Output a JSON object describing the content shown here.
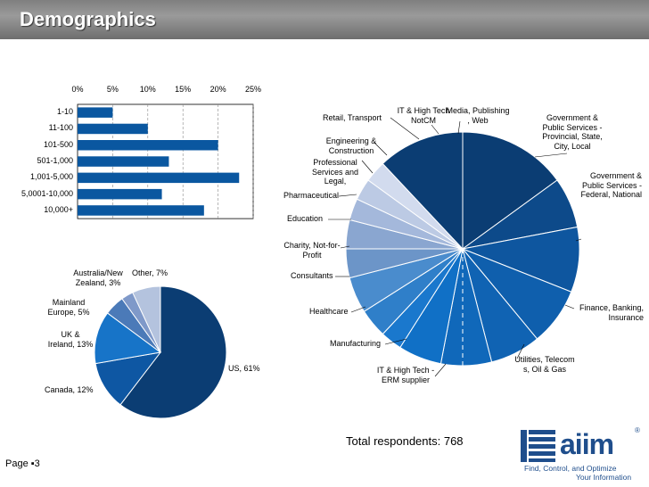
{
  "page": {
    "title": "Demographics",
    "page_label": "Page ▪3",
    "total_respondents": "Total respondents: 768"
  },
  "logo": {
    "wordmark": "aiim",
    "registered": "®",
    "tagline_line1": "Find, Control, and Optimize",
    "tagline_line2": "Your Information",
    "icon": "aiim-logo-icon"
  },
  "colors": {
    "bar": "#0a57a0",
    "dark_navy": "#0b3d73",
    "title_bar": "#8a8a8a",
    "brand_blue": "#1f4e8c"
  },
  "chart_data": [
    {
      "type": "bar",
      "orientation": "horizontal",
      "categories": [
        "1-10",
        "11-100",
        "101-500",
        "501-1,000",
        "1,001-5,000",
        "5,0001-10,000",
        "10,000+"
      ],
      "values": [
        5,
        10,
        20,
        13,
        23,
        12,
        18
      ],
      "unit": "%",
      "xlim": [
        0,
        25
      ],
      "ticks": [
        "0%",
        "5%",
        "10%",
        "15%",
        "20%",
        "25%"
      ],
      "grid": true,
      "title": "",
      "xlabel": "",
      "ylabel": ""
    },
    {
      "type": "pie",
      "labels": [
        "US, 61%",
        "Canada, 12%",
        "UK & Ireland, 13%",
        "Mainland Europe, 5%",
        "Australia/New Zealand, 3%",
        "Other, 7%"
      ],
      "values": [
        61,
        12,
        13,
        5,
        3,
        7
      ],
      "colors": [
        "#0b3d73",
        "#0e57a3",
        "#1774c8",
        "#4b7ab8",
        "#7f99c9",
        "#b4c3de"
      ]
    },
    {
      "type": "pie",
      "labels": [
        "Government & Public Services - Federal, National",
        "Finance, Banking, Insurance",
        "Utilities, Telecoms, Oil & Gas",
        "IT & High Tech - ERM supplier",
        "Manufacturing",
        "Healthcare",
        "Consultants",
        "Charity, Not-for-Profit",
        "Education",
        "Pharmaceutical",
        "Professional Services and Legal,",
        "Engineering & Construction",
        "Retail, Transport",
        "IT & High Tech NotCM",
        "Media, Publishing, Web",
        "Government & Public Services - Provincial, State, City, Local"
      ],
      "values": [
        15,
        7,
        9,
        8,
        7,
        7,
        6,
        3,
        4,
        5,
        4,
        4,
        3,
        3,
        3,
        12
      ],
      "colors": [
        "#0b3d73",
        "#0d4a8a",
        "#0e569f",
        "#0f5fad",
        "#1063b3",
        "#1068ba",
        "#1070c6",
        "#1a78cd",
        "#2f7fc9",
        "#4a8ccd",
        "#6c95c8",
        "#8aa6d0",
        "#a4b8db",
        "#bccae4",
        "#d2dbee",
        "#0b3d73"
      ]
    }
  ],
  "labels": {
    "bar_categories": [
      "1-10",
      "11-100",
      "101-500",
      "501-1,000",
      "1,001-5,000",
      "5,0001-10,000",
      "10,000+"
    ],
    "geo": {
      "us": "US, 61%",
      "canada": "Canada, 12%",
      "uk": "UK &\nIreland, 13%",
      "europe": "Mainland\nEurope, 5%",
      "australia": "Australia/New\nZealand, 3%",
      "other": "Other, 7%"
    },
    "industry": {
      "gov_federal": "Government &\nPublic Services  -\nFederal, National",
      "finance": "Finance, Banking,\nInsurance",
      "utilities": "Utilities, Telecom\ns, Oil & Gas",
      "it_erm": "IT & High Tech -\nERM supplier",
      "manufacturing": "Manufacturing",
      "healthcare": "Healthcare",
      "consultants": "Consultants",
      "charity": "Charity, Not-for-\nProfit",
      "education": "Education",
      "pharma": "Pharmaceutical",
      "professional": "Professional\nServices and\nLegal,",
      "engineering": "Engineering &\nConstruction",
      "retail": "Retail, Transport",
      "it_notcm": "IT & High Tech\nNotCM",
      "media": "Media, Publishing\n, Web",
      "gov_local": "Government  &\nPublic Services -\nProvincial, State,\nCity, Local"
    }
  }
}
